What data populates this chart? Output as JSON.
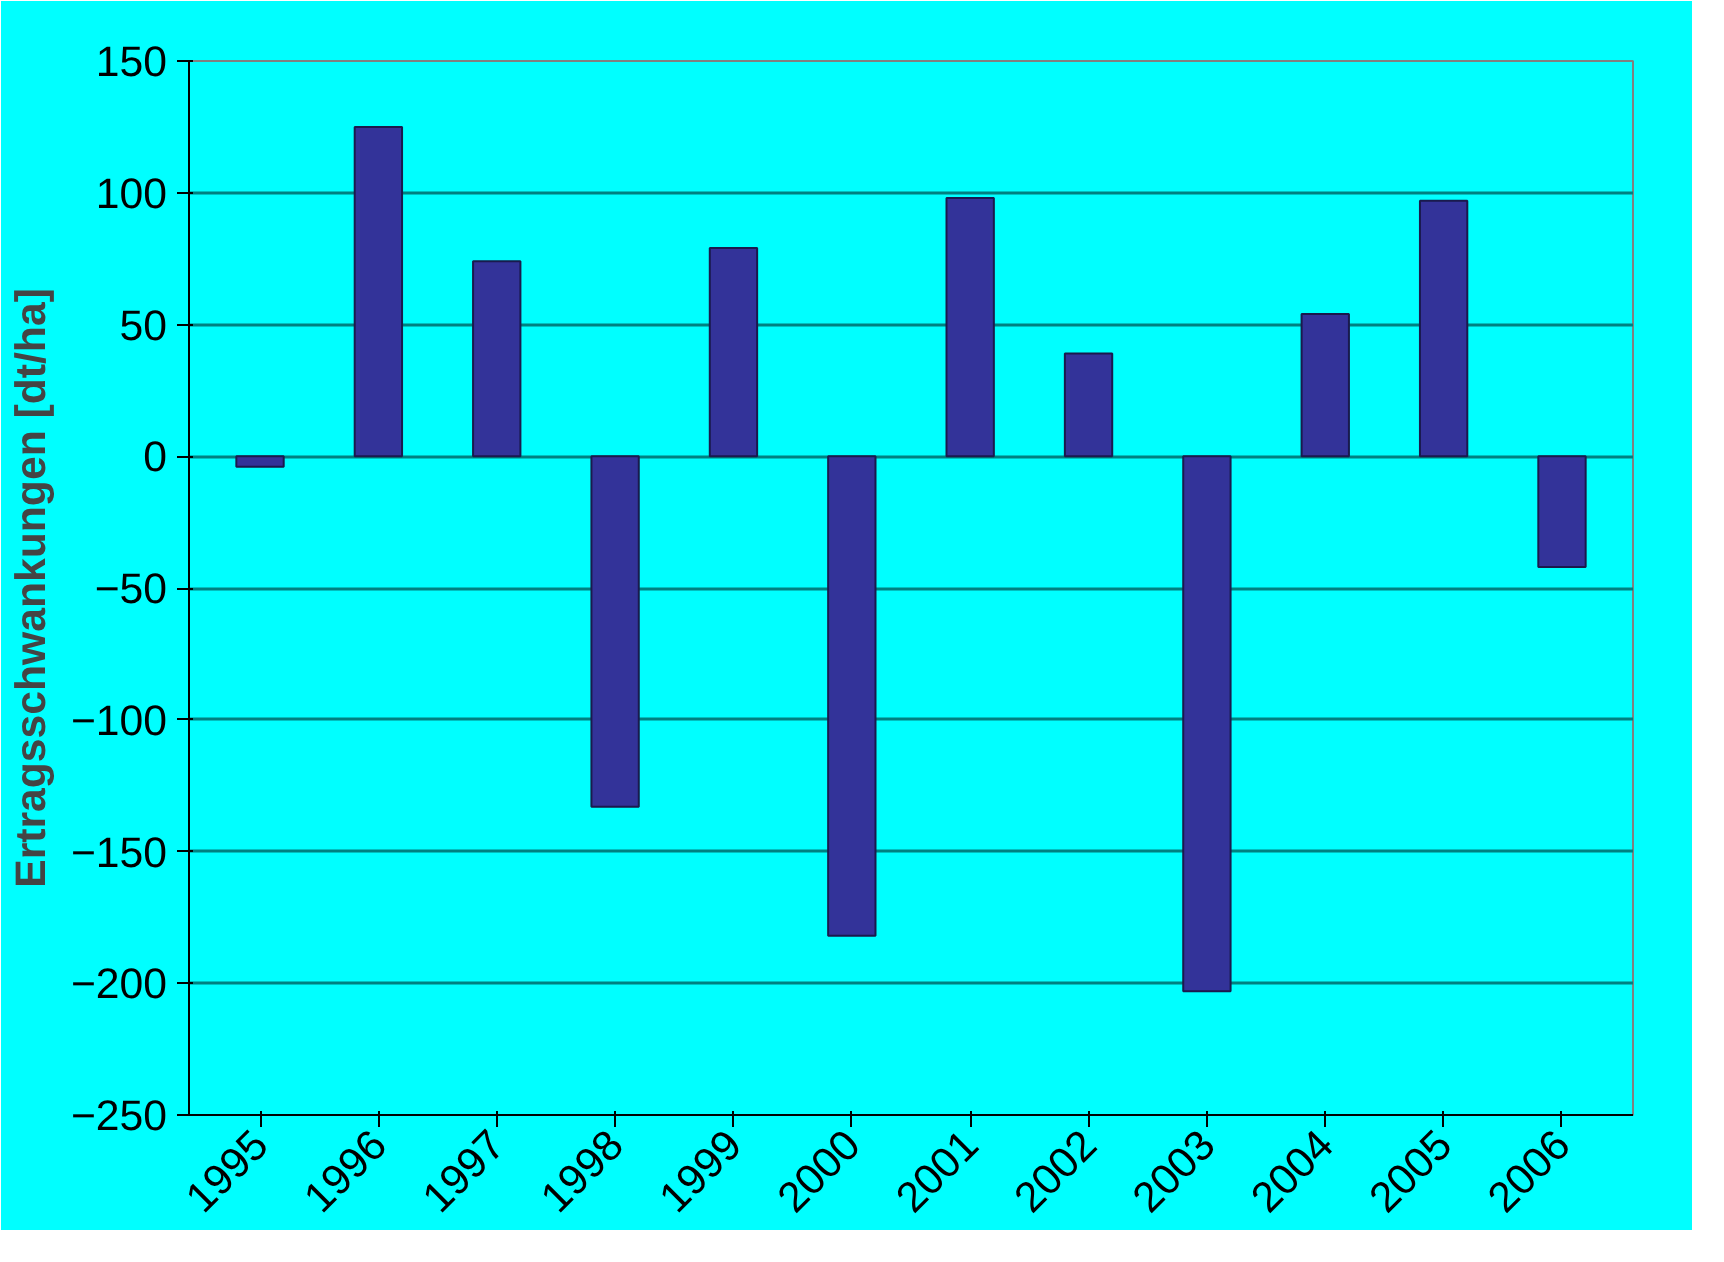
{
  "chart_data": {
    "type": "bar",
    "ylabel": "Ertragsschwankungen [dt/ha]",
    "categories": [
      "1995",
      "1996",
      "1997",
      "1998",
      "1999",
      "2000",
      "2001",
      "2002",
      "2003",
      "2004",
      "2005",
      "2006"
    ],
    "values": [
      -4,
      125,
      74,
      -133,
      79,
      -182,
      98,
      39,
      -203,
      54,
      97,
      -42
    ],
    "color": "#333399",
    "ylim": [
      -250,
      150
    ],
    "yticks": [
      -250,
      -200,
      -150,
      -100,
      -50,
      0,
      50,
      100,
      150
    ],
    "grid": "y"
  }
}
